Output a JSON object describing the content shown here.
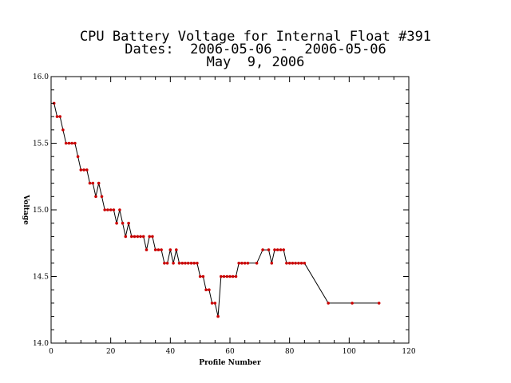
{
  "title_lines": [
    "CPU Battery Voltage for Internal Float #391",
    "Dates:  2006-05-06 -  2006-05-06",
    "May  9, 2006"
  ],
  "colors": {
    "line": "#000000",
    "marker": "#cc0000",
    "axis": "#000000"
  },
  "chart_data": {
    "type": "line",
    "title": "CPU Battery Voltage for Internal Float #391",
    "xlabel": "Profile Number",
    "ylabel": "Voltage",
    "xlim": [
      0,
      120
    ],
    "ylim": [
      14.0,
      16.0
    ],
    "xticks": [
      0,
      20,
      40,
      60,
      80,
      100,
      120
    ],
    "xtick_labels": [
      "0",
      "20",
      "40",
      "60",
      "80",
      "100",
      "120"
    ],
    "yticks": [
      14.0,
      14.5,
      15.0,
      15.5,
      16.0
    ],
    "ytick_labels": [
      "14.0",
      "14.5",
      "15.0",
      "15.5",
      "16.0"
    ],
    "grid": false,
    "series": [
      {
        "x": [
          1,
          2,
          3,
          4,
          5,
          6,
          7,
          8,
          9,
          10,
          11,
          12,
          13,
          14,
          15,
          16,
          17,
          18,
          19,
          20,
          21,
          22,
          23,
          24,
          25,
          26,
          27,
          28,
          29,
          30,
          31,
          32,
          33,
          34,
          35,
          36,
          37,
          38,
          39,
          40,
          41,
          42,
          43,
          44,
          45,
          46,
          47,
          48,
          49,
          50,
          51,
          52,
          53,
          54,
          55,
          56,
          57,
          58,
          59,
          60,
          61,
          62,
          63,
          64,
          65,
          66,
          69,
          71,
          73,
          74,
          75,
          76,
          77,
          78,
          79,
          80,
          81,
          82,
          83,
          84,
          85,
          93,
          101,
          110
        ],
        "y": [
          15.8,
          15.7,
          15.7,
          15.6,
          15.5,
          15.5,
          15.5,
          15.5,
          15.4,
          15.3,
          15.3,
          15.3,
          15.2,
          15.2,
          15.1,
          15.2,
          15.1,
          15.0,
          15.0,
          15.0,
          15.0,
          14.9,
          15.0,
          14.9,
          14.8,
          14.9,
          14.8,
          14.8,
          14.8,
          14.8,
          14.8,
          14.7,
          14.8,
          14.8,
          14.7,
          14.7,
          14.7,
          14.6,
          14.6,
          14.7,
          14.6,
          14.7,
          14.6,
          14.6,
          14.6,
          14.6,
          14.6,
          14.6,
          14.6,
          14.5,
          14.5,
          14.4,
          14.4,
          14.3,
          14.3,
          14.2,
          14.5,
          14.5,
          14.5,
          14.5,
          14.5,
          14.5,
          14.6,
          14.6,
          14.6,
          14.6,
          14.6,
          14.7,
          14.7,
          14.6,
          14.7,
          14.7,
          14.7,
          14.7,
          14.6,
          14.6,
          14.6,
          14.6,
          14.6,
          14.6,
          14.6,
          14.3,
          14.3,
          14.3
        ]
      }
    ]
  }
}
